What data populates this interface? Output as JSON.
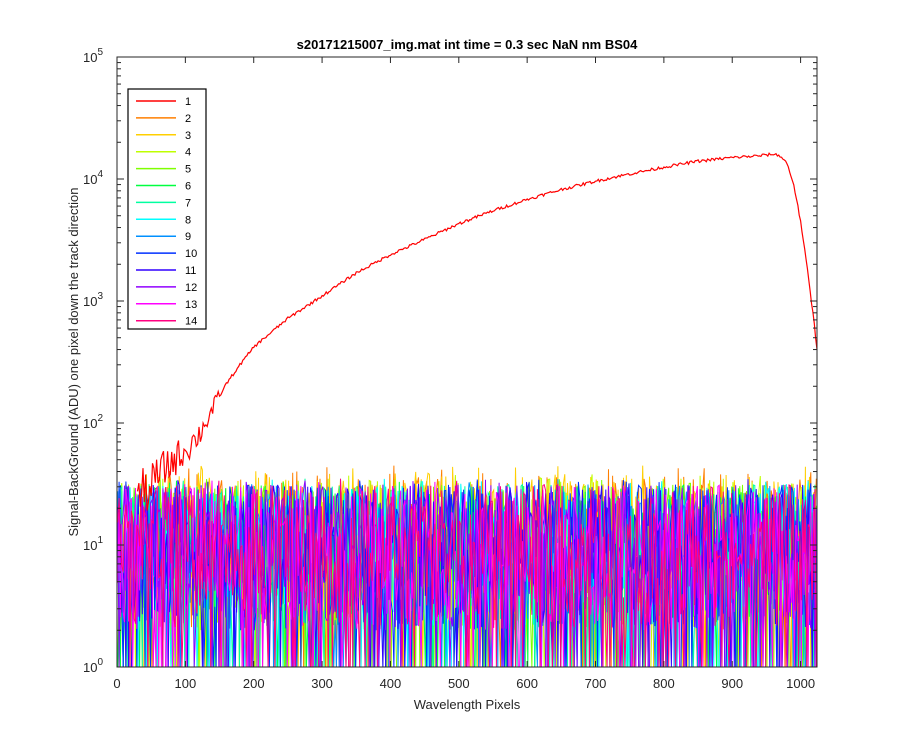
{
  "chart_data": {
    "type": "line",
    "title": "s20171215007_img.mat int time = 0.3 sec  NaN nm BS04",
    "xlabel": "Wavelength Pixels",
    "ylabel": "Signal-BackGround (ADU) one pixel down the track direction",
    "xlim": [
      0,
      1024
    ],
    "ylim": [
      1,
      100000
    ],
    "yscale": "log",
    "xticks": [
      "0",
      "100",
      "200",
      "300",
      "400",
      "500",
      "600",
      "700",
      "800",
      "900",
      "1000"
    ],
    "yticks": [
      {
        "base": "10",
        "exp": "0"
      },
      {
        "base": "10",
        "exp": "1"
      },
      {
        "base": "10",
        "exp": "2"
      },
      {
        "base": "10",
        "exp": "3"
      },
      {
        "base": "10",
        "exp": "4"
      },
      {
        "base": "10",
        "exp": "5"
      }
    ],
    "grid": false,
    "legend_position": "top-left",
    "series": [
      {
        "name": "1",
        "color": "#ff0000",
        "x": [
          30,
          50,
          60,
          70,
          80,
          100,
          120,
          140,
          160,
          180,
          200,
          250,
          300,
          350,
          400,
          450,
          500,
          550,
          600,
          650,
          700,
          750,
          800,
          850,
          900,
          940,
          960,
          970,
          980,
          990,
          1000,
          1010,
          1020,
          1024
        ],
        "y": [
          25,
          30,
          38,
          42,
          48,
          60,
          80,
          130,
          210,
          300,
          420,
          720,
          1100,
          1700,
          2400,
          3200,
          4300,
          5500,
          6800,
          8200,
          9600,
          11000,
          12500,
          14000,
          15000,
          15500,
          16000,
          15500,
          13500,
          9000,
          4500,
          1800,
          650,
          400
        ]
      },
      {
        "name": "2",
        "color": "#ff7f00",
        "noise_range": [
          1,
          45
        ]
      },
      {
        "name": "3",
        "color": "#ffcf00",
        "noise_range": [
          1,
          45
        ]
      },
      {
        "name": "4",
        "color": "#bfff00",
        "noise_range": [
          1,
          40
        ]
      },
      {
        "name": "5",
        "color": "#7fff00",
        "noise_range": [
          1,
          35
        ]
      },
      {
        "name": "6",
        "color": "#00ff40",
        "noise_range": [
          1,
          35
        ]
      },
      {
        "name": "7",
        "color": "#00ffa0",
        "noise_range": [
          1,
          35
        ]
      },
      {
        "name": "8",
        "color": "#00ffff",
        "noise_range": [
          1,
          35
        ]
      },
      {
        "name": "9",
        "color": "#0090ff",
        "noise_range": [
          1,
          35
        ]
      },
      {
        "name": "10",
        "color": "#0030ff",
        "noise_range": [
          1,
          35
        ]
      },
      {
        "name": "11",
        "color": "#3000ff",
        "noise_range": [
          1,
          35
        ]
      },
      {
        "name": "12",
        "color": "#9000ff",
        "noise_range": [
          1,
          35
        ]
      },
      {
        "name": "13",
        "color": "#ff00ff",
        "noise_range": [
          1,
          35
        ]
      },
      {
        "name": "14",
        "color": "#ff0080",
        "noise_range": [
          1,
          35
        ]
      }
    ]
  }
}
